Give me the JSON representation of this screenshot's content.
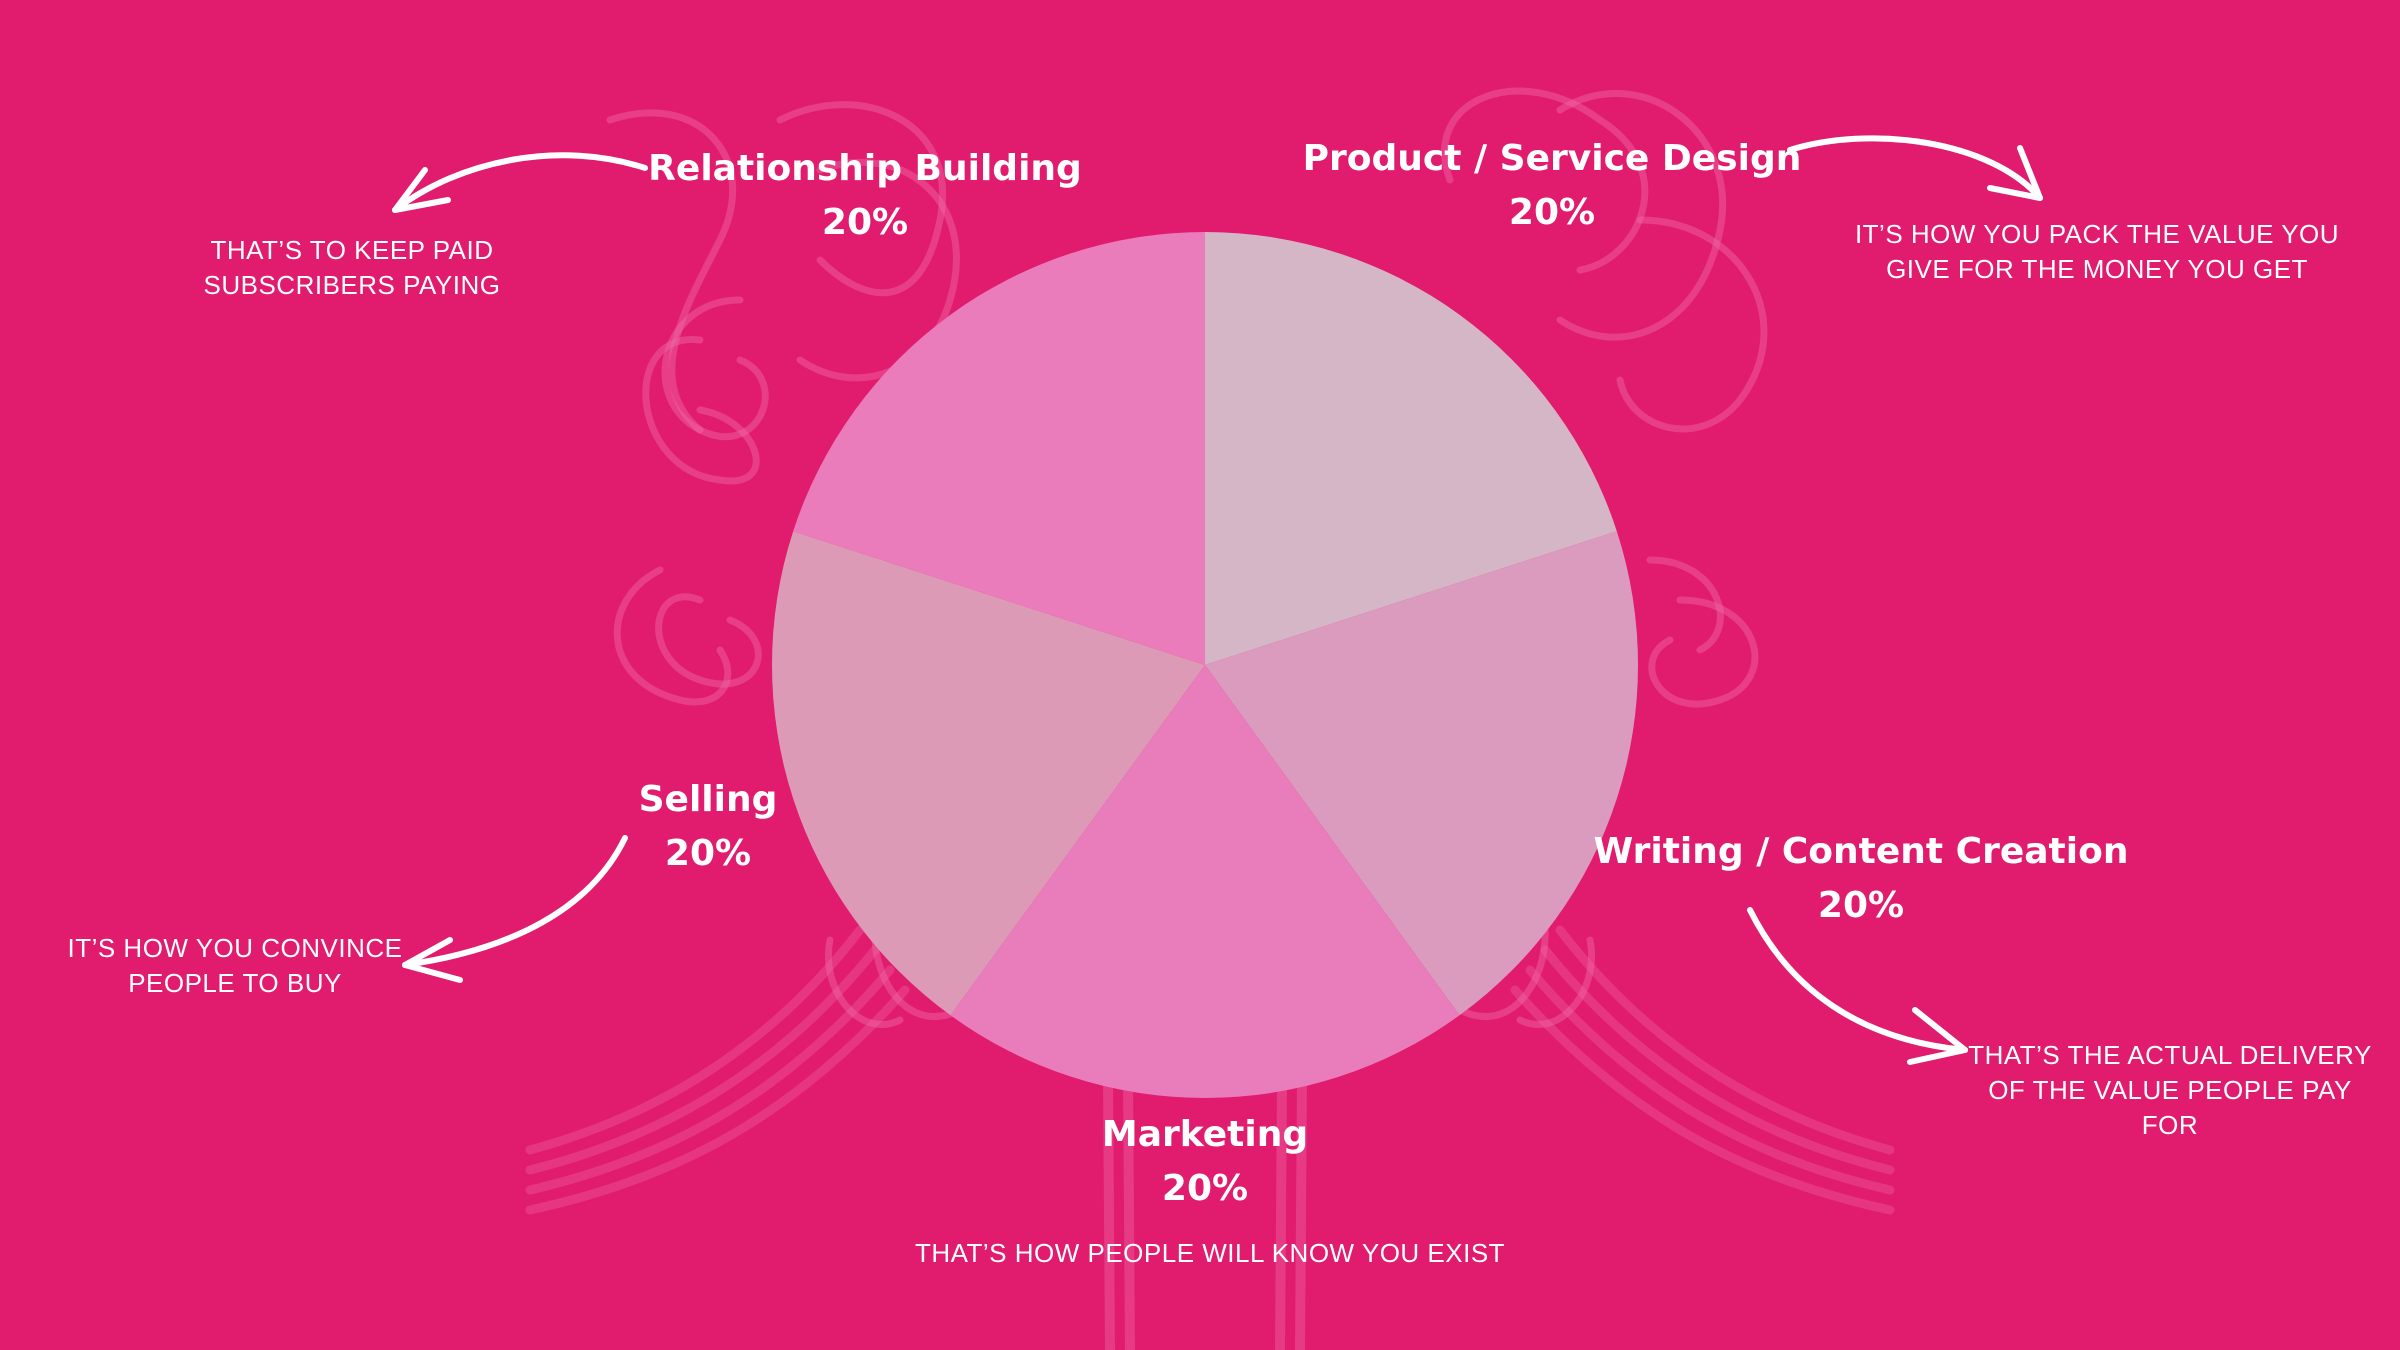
{
  "colors": {
    "background": "#E11B6E",
    "text": "#FFFFFF",
    "arrow": "#FFFFFF",
    "decoration": "#F06AA6"
  },
  "chart_data": {
    "type": "pie",
    "unit": "%",
    "slices": [
      {
        "label": "Product / Service Design",
        "value": 20,
        "value_label": "20%",
        "color": "#D5B6C6",
        "note": "IT’S HOW YOU PACK THE VALUE YOU GIVE FOR THE MONEY YOU GET"
      },
      {
        "label": "Writing / Content Creation",
        "value": 20,
        "value_label": "20%",
        "color": "#DB9BBF",
        "note": "THAT’S THE ACTUAL DELIVERY OF THE VALUE PEOPLE PAY FOR"
      },
      {
        "label": "Marketing",
        "value": 20,
        "value_label": "20%",
        "color": "#E97CBB",
        "note": "THAT’S HOW PEOPLE WILL KNOW YOU EXIST"
      },
      {
        "label": "Selling",
        "value": 20,
        "value_label": "20%",
        "color": "#DC9AB7",
        "note": "IT’S HOW YOU CONVINCE PEOPLE TO BUY"
      },
      {
        "label": "Relationship Building",
        "value": 20,
        "value_label": "20%",
        "color": "#EB7CBB",
        "note": "THAT’S TO KEEP PAID SUBSCRIBERS PAYING"
      }
    ],
    "start_angle_deg": 0,
    "direction": "clockwise",
    "legend": "none"
  }
}
